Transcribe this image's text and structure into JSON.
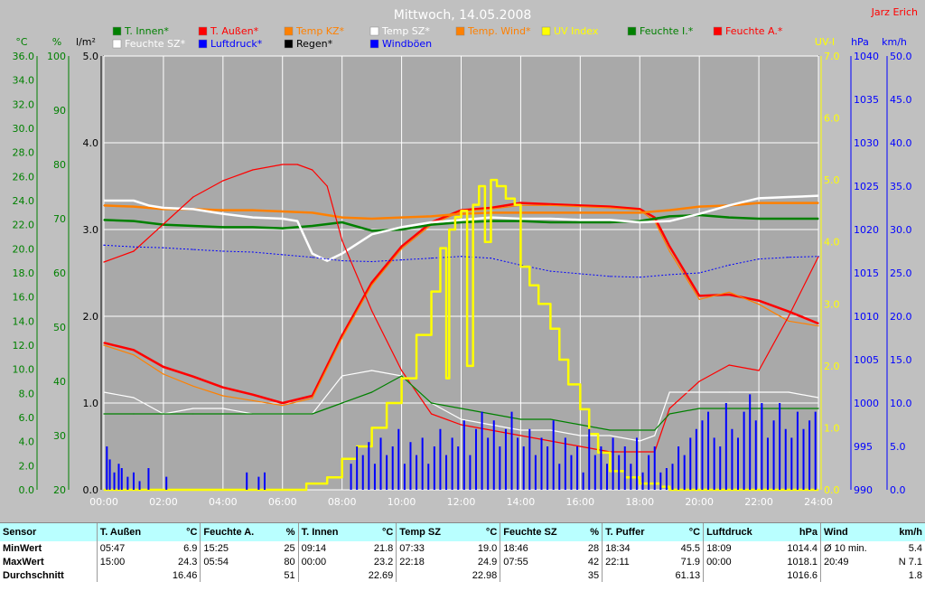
{
  "chart_data": {
    "type": "line",
    "title": "Mittwoch, 14.05.2008",
    "author": "Jarz Erich",
    "x_ticks": [
      "00:00",
      "02:00",
      "04:00",
      "06:00",
      "08:00",
      "10:00",
      "12:00",
      "14:00",
      "16:00",
      "18:00",
      "20:00",
      "22:00",
      "24:00"
    ],
    "xlim_hours": [
      0,
      24
    ],
    "axes_units": {
      "temp": "°C",
      "humidity": "%",
      "rain": "l/m²",
      "uv": "UV-I",
      "pressure": "hPa",
      "wind": "km/h"
    },
    "axes_ranges": {
      "temp": [
        0,
        36
      ],
      "humidity": [
        20,
        100
      ],
      "rain": [
        0,
        5
      ],
      "uv": [
        0,
        7
      ],
      "pressure": [
        990,
        1040
      ],
      "wind": [
        0,
        50
      ]
    },
    "temp_ticks": [
      "0.0",
      "2.0",
      "4.0",
      "6.0",
      "8.0",
      "10.0",
      "12.0",
      "14.0",
      "16.0",
      "18.0",
      "20.0",
      "22.0",
      "24.0",
      "26.0",
      "28.0",
      "30.0",
      "32.0",
      "34.0",
      "36.0"
    ],
    "humidity_ticks": [
      "20",
      "30",
      "40",
      "50",
      "60",
      "70",
      "80",
      "90",
      "100"
    ],
    "rain_ticks": [
      "0.0",
      "1.0",
      "2.0",
      "3.0",
      "4.0",
      "5.0"
    ],
    "uv_ticks": [
      "0.0",
      "1.0",
      "2.0",
      "3.0",
      "4.0",
      "5.0",
      "6.0",
      "7.0"
    ],
    "pressure_ticks": [
      "990",
      "995",
      "1000",
      "1005",
      "1010",
      "1015",
      "1020",
      "1025",
      "1030",
      "1035",
      "1040"
    ],
    "wind_ticks": [
      "0.0",
      "5.0",
      "10.0",
      "15.0",
      "20.0",
      "25.0",
      "30.0",
      "35.0",
      "40.0",
      "45.0",
      "50.0"
    ],
    "grid": true,
    "legend": [
      {
        "label": "T. Innen*",
        "color": "#008000"
      },
      {
        "label": "T. Außen*",
        "color": "#ff0000"
      },
      {
        "label": "Temp KZ*",
        "color": "#ff8000"
      },
      {
        "label": "Temp SZ*",
        "color": "#ffffff"
      },
      {
        "label": "Temp. Wind*",
        "color": "#ff8000"
      },
      {
        "label": "UV Index",
        "color": "#ffff00"
      },
      {
        "label": "Feuchte I.*",
        "color": "#008000"
      },
      {
        "label": "Feuchte A.*",
        "color": "#ff0000"
      },
      {
        "label": "Feuchte SZ*",
        "color": "#ffffff"
      },
      {
        "label": "Luftdruck*",
        "color": "#0000ff"
      },
      {
        "label": "Regen*",
        "color": "#000000"
      },
      {
        "label": "Windböen",
        "color": "#0000ff"
      }
    ],
    "series": [
      {
        "name": "T. Außen*",
        "axis": "temp",
        "color": "#ff0000",
        "width": 2.5,
        "x": [
          0,
          1,
          2,
          3,
          4,
          5,
          6,
          7,
          8,
          9,
          10,
          11,
          12,
          13,
          14,
          15,
          16,
          17,
          18,
          18.5,
          19,
          20,
          21,
          22,
          23,
          24
        ],
        "y": [
          12.2,
          11.6,
          10.2,
          9.4,
          8.5,
          7.9,
          7.2,
          7.8,
          12.8,
          17.2,
          20.2,
          22.2,
          23.2,
          23.4,
          23.8,
          23.7,
          23.6,
          23.5,
          23.3,
          22.6,
          20.2,
          16.1,
          16.2,
          15.7,
          14.8,
          13.8
        ]
      },
      {
        "name": "Temp. Wind*",
        "axis": "temp",
        "color": "#ff8000",
        "width": 1.2,
        "x": [
          0,
          1,
          2,
          3,
          4,
          5,
          6,
          7,
          8,
          9,
          10,
          11,
          12,
          13,
          14,
          15,
          16,
          17,
          18,
          18.5,
          19,
          20,
          21,
          22,
          23,
          24
        ],
        "y": [
          12.0,
          11.2,
          9.6,
          8.6,
          7.8,
          7.4,
          7.0,
          7.6,
          12.6,
          17.0,
          20.0,
          22.0,
          23.1,
          23.3,
          23.6,
          23.6,
          23.5,
          23.4,
          23.2,
          22.3,
          19.8,
          15.8,
          16.4,
          15.4,
          14.0,
          13.6
        ]
      },
      {
        "name": "T. Innen*",
        "axis": "temp",
        "color": "#008000",
        "width": 2.5,
        "x": [
          0,
          1,
          2,
          3,
          4,
          5,
          6,
          7,
          8,
          9,
          10,
          11,
          12,
          13,
          14,
          15,
          16,
          17,
          18,
          19,
          20,
          21,
          22,
          23,
          24
        ],
        "y": [
          22.4,
          22.3,
          22.0,
          21.9,
          21.8,
          21.8,
          21.7,
          21.9,
          22.2,
          21.5,
          21.6,
          22.0,
          22.2,
          22.3,
          22.3,
          22.2,
          22.2,
          22.2,
          22.3,
          22.7,
          22.8,
          22.6,
          22.5,
          22.5,
          22.5
        ]
      },
      {
        "name": "Temp KZ*",
        "axis": "temp",
        "color": "#ff8000",
        "width": 2.5,
        "x": [
          0,
          1,
          2,
          3,
          4,
          5,
          6,
          7,
          8,
          9,
          10,
          11,
          12,
          13,
          14,
          15,
          16,
          17,
          18,
          19,
          20,
          21,
          22,
          23,
          24
        ],
        "y": [
          23.6,
          23.5,
          23.3,
          23.3,
          23.2,
          23.2,
          23.1,
          23.0,
          22.6,
          22.5,
          22.6,
          22.7,
          22.9,
          23.0,
          23.0,
          23.0,
          23.0,
          23.0,
          23.0,
          23.2,
          23.5,
          23.6,
          23.8,
          23.8,
          23.8
        ]
      },
      {
        "name": "Temp SZ*",
        "axis": "temp",
        "color": "#ffffff",
        "width": 2.5,
        "x": [
          0,
          1,
          1.5,
          2,
          3,
          4,
          5,
          6,
          6.5,
          7,
          7.5,
          8,
          9,
          10,
          11,
          12,
          13,
          14,
          15,
          16,
          17,
          18,
          19,
          20,
          21,
          22,
          23,
          24
        ],
        "y": [
          24.0,
          24.0,
          23.6,
          23.4,
          23.3,
          22.9,
          22.6,
          22.5,
          22.3,
          19.6,
          19.0,
          19.6,
          21.2,
          21.8,
          22.2,
          22.4,
          22.6,
          22.5,
          22.5,
          22.4,
          22.4,
          22.2,
          22.3,
          22.9,
          23.6,
          24.2,
          24.3,
          24.4
        ]
      },
      {
        "name": "Feuchte A.*",
        "axis": "humidity",
        "color": "#ff0000",
        "width": 1.2,
        "x": [
          0,
          1,
          2,
          3,
          4,
          5,
          6,
          6.5,
          7,
          7.5,
          8,
          9,
          10,
          11,
          12,
          13,
          14,
          15,
          16,
          17,
          18,
          18.5,
          19,
          20,
          21,
          22,
          23,
          24
        ],
        "y": [
          62,
          64,
          69,
          74,
          77,
          79,
          80,
          80,
          79,
          76,
          66,
          53,
          42,
          34,
          32,
          31,
          30,
          29,
          28,
          27,
          27,
          27,
          35,
          40,
          43,
          42,
          52,
          63
        ]
      },
      {
        "name": "Feuchte SZ*",
        "axis": "humidity",
        "color": "#ffffff",
        "width": 1.2,
        "x": [
          0,
          1,
          2,
          3,
          4,
          5,
          6,
          7,
          8,
          9,
          10,
          11,
          12,
          13,
          14,
          15,
          16,
          17,
          18,
          18.5,
          19,
          20,
          21,
          22,
          23,
          24
        ],
        "y": [
          38,
          37,
          34,
          35,
          35,
          34,
          34,
          34,
          41,
          42,
          41,
          36,
          33,
          32,
          31,
          31,
          30,
          30,
          29,
          30,
          38,
          38,
          38,
          38,
          38,
          37
        ]
      },
      {
        "name": "Feuchte I.*",
        "axis": "humidity",
        "color": "#008000",
        "width": 1.2,
        "x": [
          0,
          1,
          2,
          3,
          4,
          5,
          6,
          7,
          8,
          9,
          10,
          11,
          12,
          13,
          14,
          15,
          16,
          17,
          18,
          18.5,
          19,
          20,
          21,
          22,
          23,
          24
        ],
        "y": [
          34,
          34,
          34,
          34,
          34,
          34,
          34,
          34,
          36,
          38,
          41,
          36,
          35,
          34,
          33,
          33,
          32,
          31,
          31,
          31,
          34,
          35,
          35,
          35,
          35,
          35
        ]
      },
      {
        "name": "Luftdruck*",
        "axis": "pressure",
        "color": "#0000ff",
        "width": 1,
        "dashed": true,
        "x": [
          0,
          1,
          2,
          3,
          4,
          5,
          6,
          7,
          8,
          9,
          10,
          11,
          12,
          13,
          14,
          15,
          16,
          17,
          18,
          19,
          20,
          21,
          22,
          23,
          24
        ],
        "y": [
          1018.2,
          1018.0,
          1017.9,
          1017.7,
          1017.5,
          1017.4,
          1017.1,
          1016.8,
          1016.4,
          1016.3,
          1016.5,
          1016.7,
          1016.9,
          1016.7,
          1015.9,
          1015.2,
          1014.9,
          1014.6,
          1014.5,
          1014.8,
          1015.0,
          1015.9,
          1016.6,
          1016.8,
          1016.9
        ]
      },
      {
        "name": "UV Index",
        "axis": "uv",
        "color": "#ffff00",
        "width": 2.5,
        "step": true,
        "x": [
          0,
          6.8,
          7.5,
          8,
          8.5,
          9,
          9.5,
          10,
          10.5,
          11,
          11.3,
          11.5,
          11.6,
          11.8,
          12.0,
          12.2,
          12.4,
          12.6,
          12.8,
          13.0,
          13.2,
          13.5,
          13.8,
          14,
          14.3,
          14.6,
          15,
          15.3,
          15.6,
          16,
          16.3,
          16.6,
          17,
          17.5,
          18,
          18.5,
          18.7,
          19,
          24
        ],
        "y": [
          0,
          0.1,
          0.2,
          0.5,
          0.7,
          1.0,
          1.4,
          1.8,
          2.5,
          3.2,
          3.9,
          1.8,
          4.2,
          4.4,
          4.5,
          2.0,
          4.6,
          4.9,
          4.0,
          5.0,
          4.9,
          4.7,
          4.6,
          3.6,
          3.3,
          3.0,
          2.6,
          2.1,
          1.7,
          1.3,
          0.9,
          0.6,
          0.3,
          0.2,
          0.1,
          0.1,
          0.05,
          0,
          0
        ]
      },
      {
        "name": "Windböen",
        "axis": "wind",
        "color": "#0000ff",
        "width": 2,
        "bars": true,
        "x": [
          0.1,
          0.2,
          0.35,
          0.5,
          0.6,
          0.8,
          1.0,
          1.2,
          1.5,
          2.1,
          4.8,
          5.2,
          5.4,
          8.3,
          8.5,
          8.7,
          8.9,
          9.1,
          9.3,
          9.5,
          9.7,
          9.9,
          10.1,
          10.3,
          10.5,
          10.7,
          10.9,
          11.1,
          11.3,
          11.5,
          11.7,
          11.9,
          12.1,
          12.3,
          12.5,
          12.7,
          12.9,
          13.1,
          13.3,
          13.5,
          13.7,
          13.9,
          14.1,
          14.3,
          14.5,
          14.7,
          14.9,
          15.1,
          15.3,
          15.5,
          15.7,
          15.9,
          16.1,
          16.3,
          16.5,
          16.7,
          16.9,
          17.1,
          17.3,
          17.5,
          17.7,
          17.9,
          18.1,
          18.3,
          18.5,
          18.7,
          18.9,
          19.1,
          19.3,
          19.5,
          19.7,
          19.9,
          20.1,
          20.3,
          20.5,
          20.7,
          20.9,
          21.1,
          21.3,
          21.5,
          21.7,
          21.9,
          22.1,
          22.3,
          22.5,
          22.7,
          22.9,
          23.1,
          23.3,
          23.5,
          23.7,
          23.9
        ],
        "y": [
          5,
          3.5,
          2,
          3,
          2.5,
          1.5,
          2,
          1,
          2.5,
          1.5,
          2,
          1.5,
          2,
          3,
          5,
          4,
          5.5,
          3,
          6,
          4,
          5,
          7,
          3,
          5.5,
          4,
          6,
          3,
          5,
          7,
          4,
          6,
          5,
          8,
          4,
          7,
          9,
          6,
          8,
          5,
          7,
          9,
          6,
          5,
          7,
          4,
          6,
          5,
          8,
          3,
          6,
          4,
          5,
          2,
          7,
          4,
          5,
          3,
          6,
          4,
          5,
          3,
          6,
          2,
          4,
          5,
          2,
          2.5,
          3,
          5,
          4,
          6,
          7,
          8,
          9,
          6,
          5,
          10,
          7,
          6,
          9,
          11,
          8,
          10,
          6,
          8,
          10,
          7,
          6,
          9,
          7,
          8,
          9
        ]
      }
    ]
  },
  "stats": {
    "headers": [
      {
        "name": "Sensor",
        "unit": ""
      },
      {
        "name": "T. Außen",
        "unit": "°C"
      },
      {
        "name": "Feuchte A.",
        "unit": "%"
      },
      {
        "name": "T. Innen",
        "unit": "°C"
      },
      {
        "name": "Temp SZ",
        "unit": "°C"
      },
      {
        "name": "Feuchte SZ",
        "unit": "%"
      },
      {
        "name": "T. Puffer",
        "unit": "°C"
      },
      {
        "name": "Luftdruck",
        "unit": "hPa"
      },
      {
        "name": "Wind",
        "unit": "km/h"
      }
    ],
    "row_labels": [
      "MinWert",
      "MaxWert",
      "Durchschnitt"
    ],
    "min": [
      [
        "05:47",
        "6.9"
      ],
      [
        "15:25",
        "25"
      ],
      [
        "09:14",
        "21.8"
      ],
      [
        "07:33",
        "19.0"
      ],
      [
        "18:46",
        "28"
      ],
      [
        "18:34",
        "45.5"
      ],
      [
        "18:09",
        "1014.4"
      ],
      [
        "Ø 10 min.",
        "5.4"
      ]
    ],
    "max": [
      [
        "15:00",
        "24.3"
      ],
      [
        "05:54",
        "80"
      ],
      [
        "00:00",
        "23.2"
      ],
      [
        "22:18",
        "24.9"
      ],
      [
        "07:55",
        "42"
      ],
      [
        "22:11",
        "71.9"
      ],
      [
        "00:00",
        "1018.1"
      ],
      [
        "20:49",
        "N 7.1"
      ]
    ],
    "avg": [
      [
        "",
        "16.46"
      ],
      [
        "",
        "51"
      ],
      [
        "",
        "22.69"
      ],
      [
        "",
        "22.98"
      ],
      [
        "",
        "35"
      ],
      [
        "",
        "61.13"
      ],
      [
        "",
        "1016.6"
      ],
      [
        "",
        "1.8"
      ]
    ]
  }
}
